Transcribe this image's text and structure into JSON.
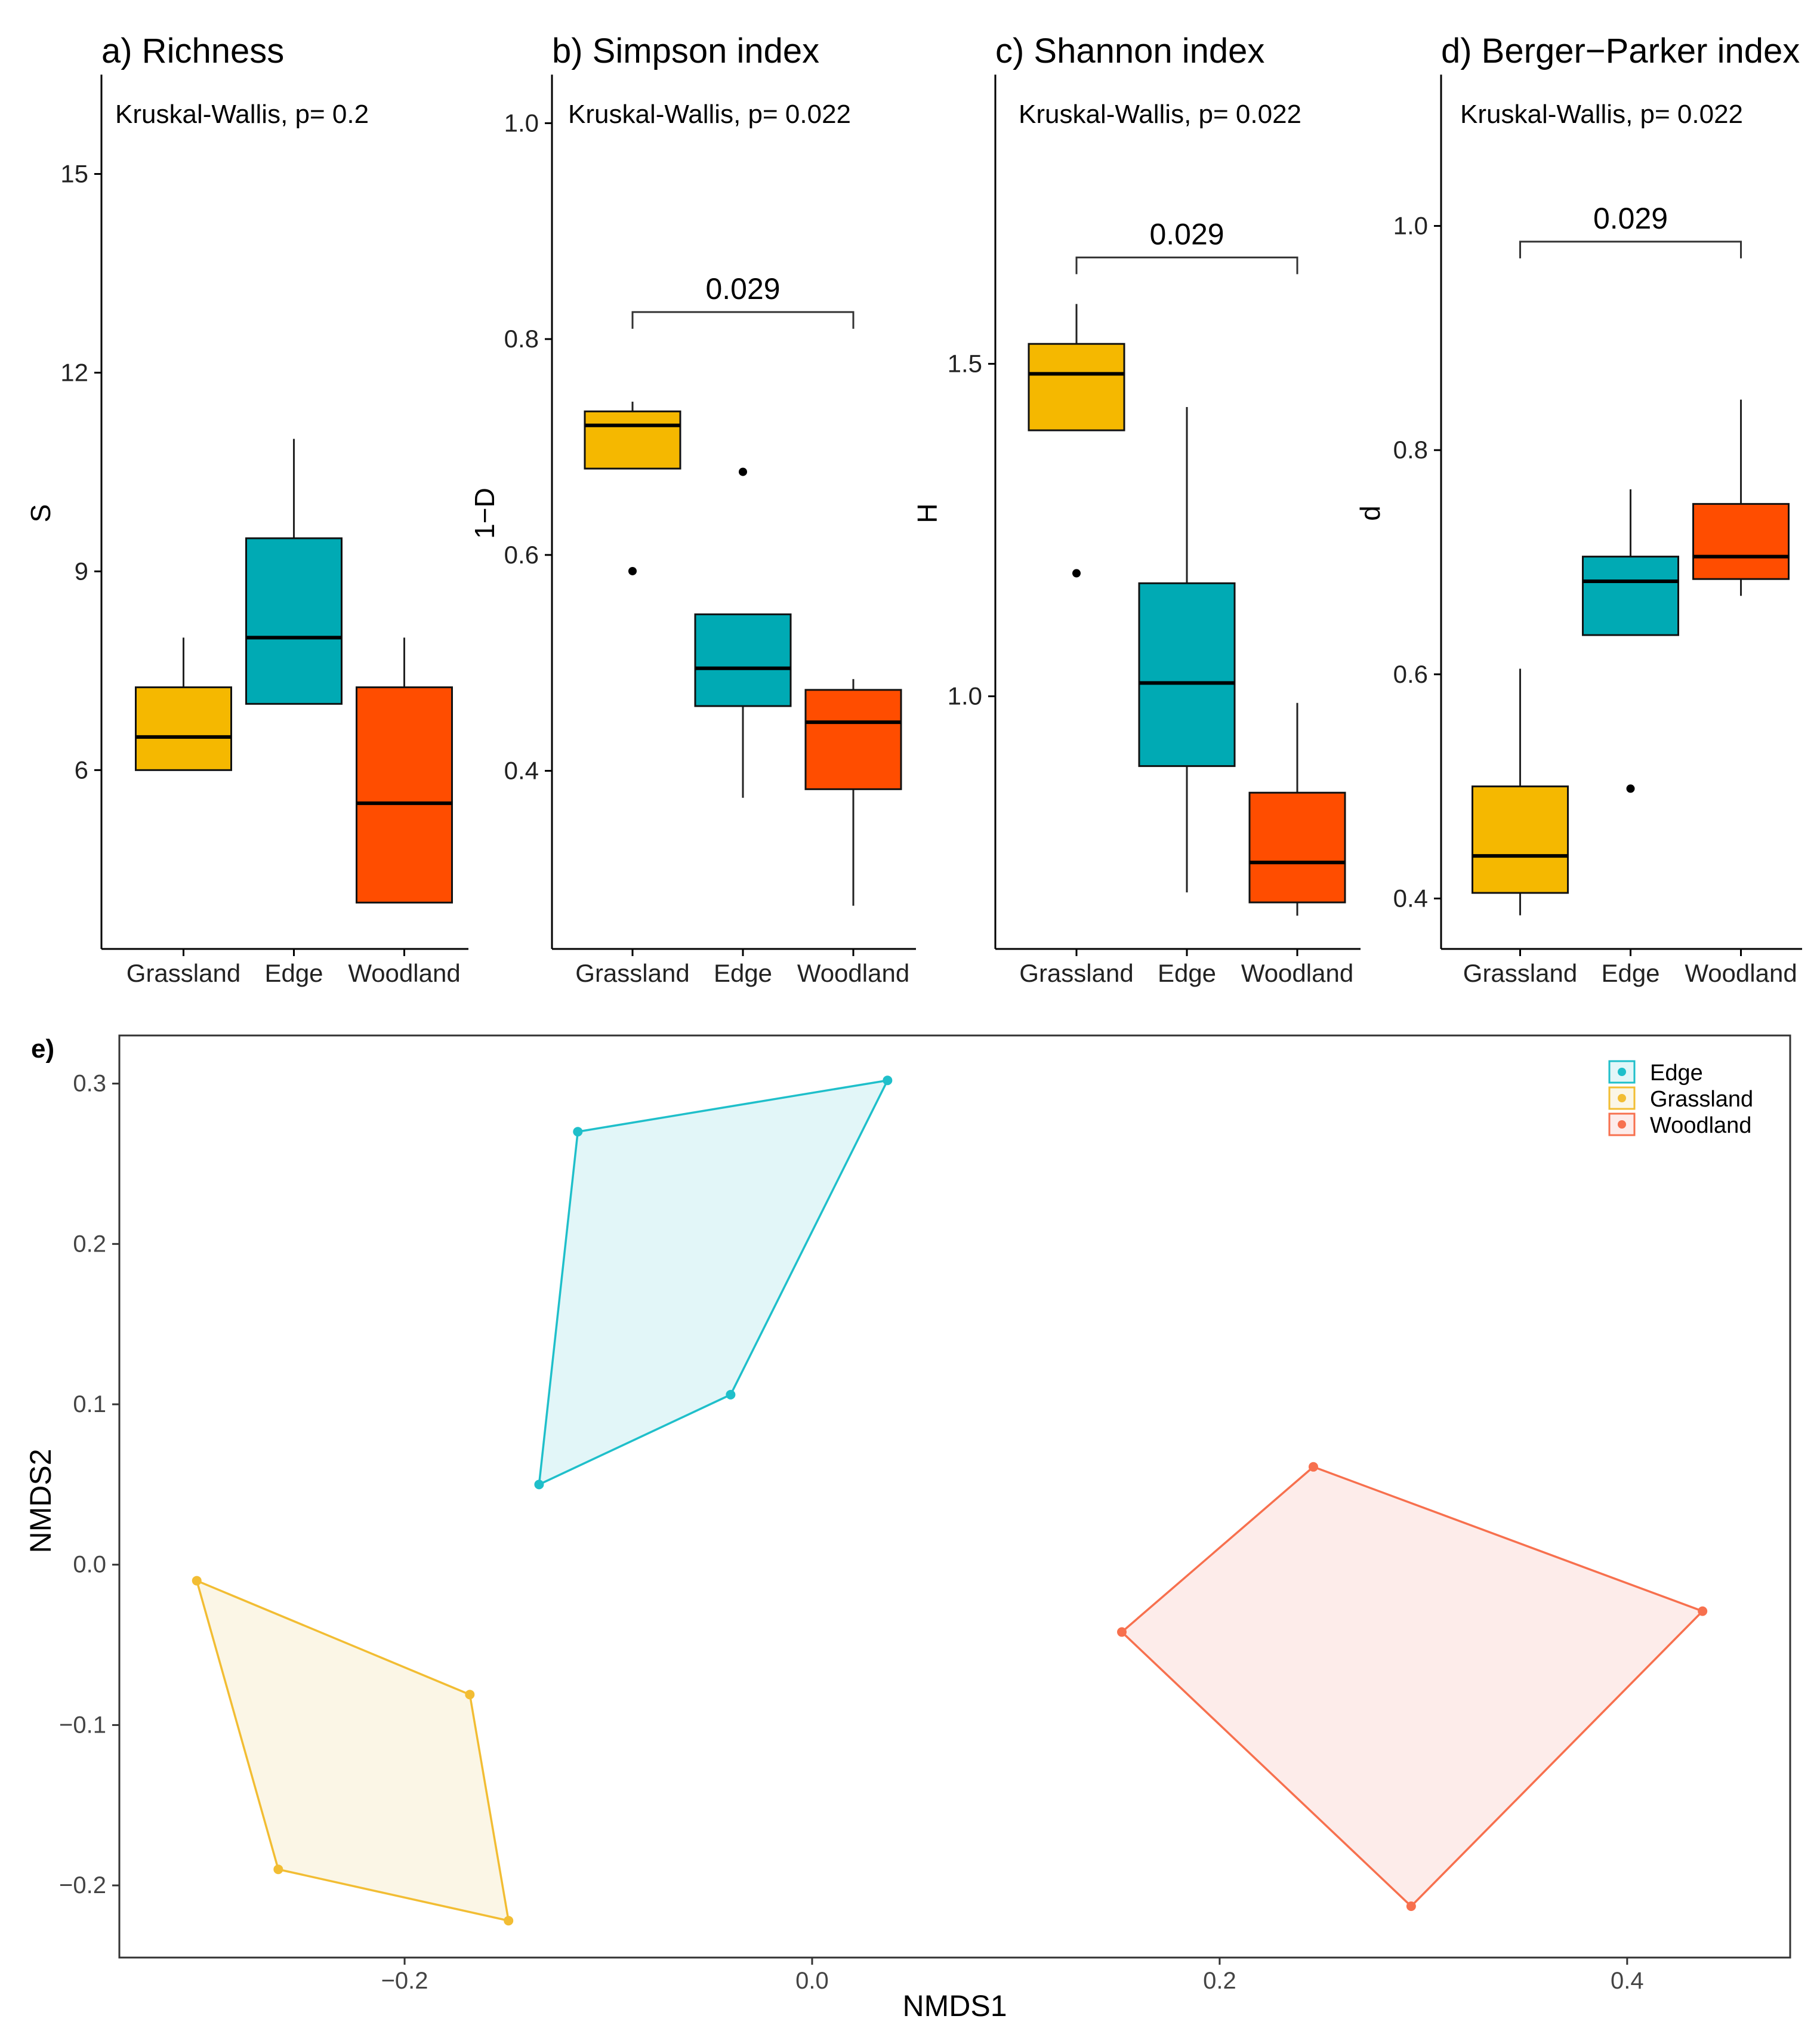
{
  "chart_data": [
    {
      "type": "box",
      "title": "a) Richness",
      "ylabel": "S",
      "annotation": "Kruskal-Wallis, p= 0.2",
      "categories": [
        "Grassland",
        "Edge",
        "Woodland"
      ],
      "ylim": [
        3.3,
        16.5
      ],
      "yticks": [
        6,
        9,
        12,
        15
      ],
      "ytick_labels": [
        "6",
        "9",
        "12",
        "15"
      ],
      "boxes": [
        {
          "q1": 6,
          "median": 6.5,
          "q3": 7.25,
          "whisker_low": 6,
          "whisker_high": 8,
          "outliers": []
        },
        {
          "q1": 7,
          "median": 8,
          "q3": 9.5,
          "whisker_low": 7,
          "whisker_high": 11,
          "outliers": []
        },
        {
          "q1": 4,
          "median": 5.5,
          "q3": 7.25,
          "whisker_low": 4,
          "whisker_high": 8,
          "outliers": []
        }
      ],
      "bracket": null
    },
    {
      "type": "box",
      "title": "b) Simpson index",
      "ylabel": "1−D",
      "annotation": "Kruskal-Wallis, p= 0.022",
      "categories": [
        "Grassland",
        "Edge",
        "Woodland"
      ],
      "ylim": [
        0.235,
        1.045
      ],
      "yticks": [
        0.4,
        0.6,
        0.8,
        1.0
      ],
      "ytick_labels": [
        "0.4",
        "0.6",
        "0.8",
        "1.0"
      ],
      "boxes": [
        {
          "q1": 0.68,
          "median": 0.72,
          "q3": 0.733,
          "whisker_low": 0.68,
          "whisker_high": 0.742,
          "outliers": [
            0.585
          ]
        },
        {
          "q1": 0.46,
          "median": 0.495,
          "q3": 0.545,
          "whisker_low": 0.375,
          "whisker_high": 0.545,
          "outliers": [
            0.677
          ]
        },
        {
          "q1": 0.383,
          "median": 0.445,
          "q3": 0.475,
          "whisker_low": 0.275,
          "whisker_high": 0.485,
          "outliers": []
        }
      ],
      "bracket": {
        "from": 0,
        "to": 2,
        "y": 0.825,
        "label": "0.029"
      }
    },
    {
      "type": "box",
      "title": "c) Shannon index",
      "ylabel": "H",
      "annotation": "Kruskal-Wallis, p= 0.022",
      "categories": [
        "Grassland",
        "Edge",
        "Woodland"
      ],
      "ylim": [
        0.62,
        1.935
      ],
      "yticks": [
        1.0,
        1.5
      ],
      "ytick_labels": [
        "1.0",
        "1.5"
      ],
      "boxes": [
        {
          "q1": 1.4,
          "median": 1.485,
          "q3": 1.53,
          "whisker_low": 1.4,
          "whisker_high": 1.59,
          "outliers": [
            1.185
          ]
        },
        {
          "q1": 0.895,
          "median": 1.02,
          "q3": 1.17,
          "whisker_low": 0.705,
          "whisker_high": 1.435,
          "outliers": []
        },
        {
          "q1": 0.69,
          "median": 0.75,
          "q3": 0.855,
          "whisker_low": 0.67,
          "whisker_high": 0.99,
          "outliers": []
        }
      ],
      "bracket": {
        "from": 0,
        "to": 2,
        "y": 1.66,
        "label": "0.029"
      }
    },
    {
      "type": "box",
      "title": "d) Berger−Parker index",
      "ylabel": "d",
      "annotation": "Kruskal-Wallis, p= 0.022",
      "categories": [
        "Grassland",
        "Edge",
        "Woodland"
      ],
      "ylim": [
        0.355,
        1.135
      ],
      "yticks": [
        0.4,
        0.6,
        0.8,
        1.0
      ],
      "ytick_labels": [
        "0.4",
        "0.6",
        "0.8",
        "1.0"
      ],
      "boxes": [
        {
          "q1": 0.405,
          "median": 0.438,
          "q3": 0.5,
          "whisker_low": 0.385,
          "whisker_high": 0.605,
          "outliers": []
        },
        {
          "q1": 0.635,
          "median": 0.683,
          "q3": 0.705,
          "whisker_low": 0.635,
          "whisker_high": 0.765,
          "outliers": [
            0.498
          ]
        },
        {
          "q1": 0.685,
          "median": 0.705,
          "q3": 0.752,
          "whisker_low": 0.67,
          "whisker_high": 0.845,
          "outliers": []
        }
      ],
      "bracket": {
        "from": 0,
        "to": 2,
        "y": 0.986,
        "label": "0.029"
      }
    },
    {
      "type": "scatter",
      "title": "e)",
      "xlabel": "NMDS1",
      "ylabel": "NMDS2",
      "xlim": [
        -0.34,
        0.48
      ],
      "ylim": [
        -0.245,
        0.33
      ],
      "xticks": [
        -0.2,
        0.0,
        0.2,
        0.4
      ],
      "xtick_labels": [
        "−0.2",
        "0.0",
        "0.2",
        "0.4"
      ],
      "yticks": [
        -0.2,
        -0.1,
        0.0,
        0.1,
        0.2,
        0.3
      ],
      "ytick_labels": [
        "−0.2",
        "−0.1",
        "0.0",
        "0.1",
        "0.2",
        "0.3"
      ],
      "legend_position": "top-right",
      "series": [
        {
          "name": "Edge",
          "points": [
            [
              -0.115,
              0.27
            ],
            [
              0.037,
              0.302
            ],
            [
              -0.04,
              0.106
            ],
            [
              -0.134,
              0.05
            ]
          ]
        },
        {
          "name": "Grassland",
          "points": [
            [
              -0.302,
              -0.01
            ],
            [
              -0.168,
              -0.081
            ],
            [
              -0.149,
              -0.222
            ],
            [
              -0.262,
              -0.19
            ]
          ]
        },
        {
          "name": "Woodland",
          "points": [
            [
              0.246,
              0.061
            ],
            [
              0.437,
              -0.029
            ],
            [
              0.294,
              -0.213
            ],
            [
              0.152,
              -0.042
            ]
          ]
        }
      ]
    }
  ],
  "colors": {
    "Grassland": "#f5b800",
    "Edge": "#00aab4",
    "Woodland": "#ff4d00",
    "hull_Edge_stroke": "#1fbfca",
    "hull_Edge_fill": "#e2f6f8",
    "hull_Grassland_stroke": "#f2bd33",
    "hull_Grassland_fill": "#fbf6e6",
    "hull_Woodland_stroke": "#f7704e",
    "hull_Woodland_fill": "#fdecea"
  }
}
